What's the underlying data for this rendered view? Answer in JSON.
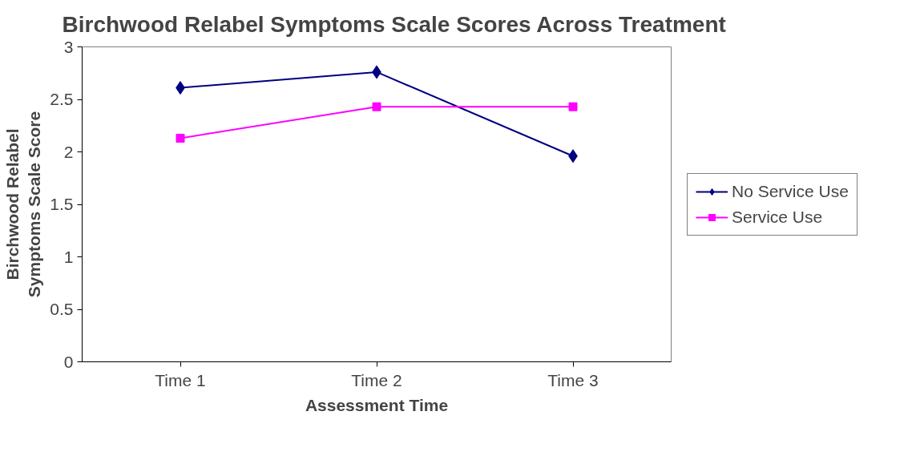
{
  "chart_data": {
    "type": "line",
    "title": "Birchwood Relabel Symptoms Scale Scores Across Treatment",
    "xlabel": "Assessment Time",
    "ylabel": "Birchwood Relabel\nSymptoms Scale Score",
    "categories": [
      "Time 1",
      "Time 2",
      "Time 3"
    ],
    "series": [
      {
        "name": "No Service Use",
        "color": "#000080",
        "marker": "diamond",
        "values": [
          2.61,
          2.76,
          1.96
        ]
      },
      {
        "name": "Service Use",
        "color": "#ff00ff",
        "marker": "square",
        "values": [
          2.13,
          2.43,
          2.43
        ]
      }
    ],
    "ylim": [
      0,
      3
    ],
    "yticks": [
      0,
      0.5,
      1,
      1.5,
      2,
      2.5,
      3
    ],
    "grid": false,
    "legend": "right"
  }
}
